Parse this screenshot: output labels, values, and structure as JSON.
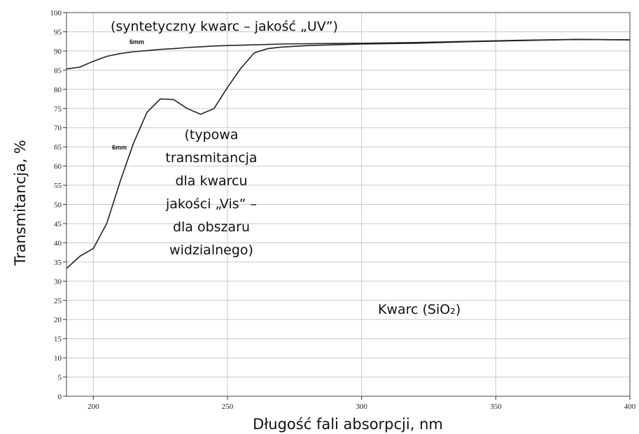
{
  "chart_data": {
    "type": "line",
    "xlabel": "Długość fali absorpcji, nm",
    "ylabel": "Transmitancja, %",
    "x": [
      190,
      195,
      200,
      205,
      210,
      215,
      220,
      225,
      230,
      235,
      240,
      245,
      250,
      255,
      260,
      265,
      270,
      280,
      300,
      320,
      340,
      360,
      380,
      400
    ],
    "series": [
      {
        "color": "#222222",
        "values": [
          85.3,
          85.8,
          87.3,
          88.6,
          89.3,
          89.8,
          90.1,
          90.4,
          90.6,
          90.9,
          91.1,
          91.3,
          91.4,
          91.5,
          91.6,
          91.7,
          91.8,
          91.9,
          92.0,
          92.2,
          92.5,
          92.8,
          93.0,
          92.9
        ]
      },
      {
        "color": "#222222",
        "values": [
          33.3,
          36.5,
          38.5,
          45,
          56,
          66,
          74,
          77.5,
          77.3,
          75,
          73.5,
          75,
          80.5,
          85.5,
          89.5,
          90.6,
          91.0,
          91.4,
          91.8,
          92.0,
          92.4,
          92.7,
          93.0,
          92.9
        ]
      }
    ],
    "xlim": [
      190,
      400
    ],
    "xticks": [
      200,
      250,
      300,
      350,
      400
    ],
    "ylim": [
      0,
      100
    ],
    "yticks": [
      0,
      5,
      10,
      15,
      20,
      25,
      30,
      35,
      40,
      45,
      50,
      55,
      60,
      65,
      70,
      75,
      80,
      85,
      90,
      95,
      100
    ],
    "grid": true,
    "annotations": [
      {
        "text": "(syntetyczny kwarc – jakość „UV”)"
      },
      {
        "text": "6mm"
      },
      {
        "text": "6mm"
      },
      {
        "lines": [
          "(typowa",
          "transmitancja",
          "dla kwarcu",
          "jakości  „Vis” –",
          "dla obszaru",
          "widzialnego)"
        ]
      },
      {
        "text": "Kwarc (SiO₂)"
      }
    ]
  }
}
